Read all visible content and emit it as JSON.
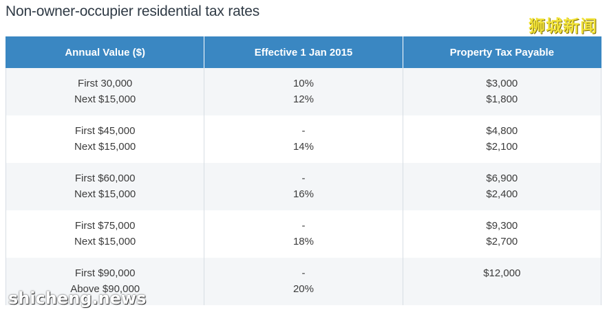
{
  "title": "Non-owner-occupier residential tax rates",
  "watermark_top": "狮城新闻",
  "watermark_bottom": "shicheng.news",
  "table": {
    "headers": [
      "Annual Value ($)",
      "Effective 1 Jan 2015",
      "Property Tax Payable"
    ],
    "rows": [
      {
        "annual": [
          "First 30,000",
          "Next $15,000"
        ],
        "rate": [
          "10%",
          "12%"
        ],
        "payable": [
          "$3,000",
          "$1,800"
        ]
      },
      {
        "annual": [
          "First $45,000",
          "Next $15,000"
        ],
        "rate": [
          "-",
          "14%"
        ],
        "payable": [
          "$4,800",
          "$2,100"
        ]
      },
      {
        "annual": [
          "First $60,000",
          "Next $15,000"
        ],
        "rate": [
          "-",
          "16%"
        ],
        "payable": [
          "$6,900",
          "$2,400"
        ]
      },
      {
        "annual": [
          "First $75,000",
          "Next $15,000"
        ],
        "rate": [
          "-",
          "18%"
        ],
        "payable": [
          "$9,300",
          "$2,700"
        ]
      },
      {
        "annual": [
          "First $90,000",
          "Above $90,000"
        ],
        "rate": [
          "-",
          "20%"
        ],
        "payable": [
          "$12,000",
          ""
        ]
      }
    ]
  }
}
